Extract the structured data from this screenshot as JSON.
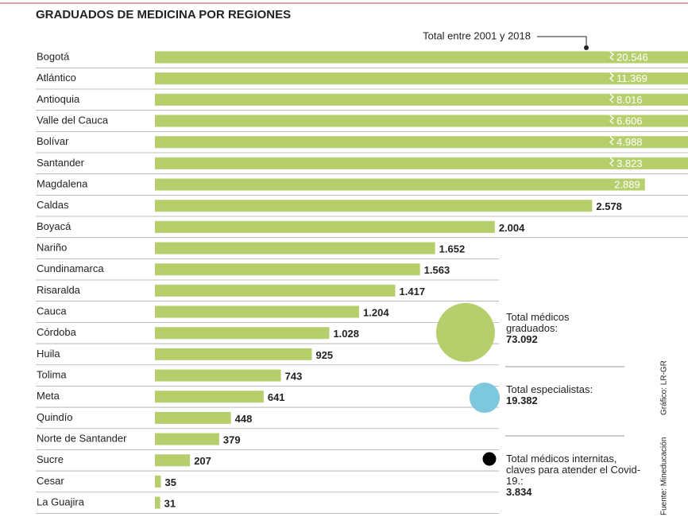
{
  "chart_data": {
    "type": "bar",
    "title": "GRADUADOS DE MEDICINA POR REGIONES",
    "annotation": "Total entre 2001 y 2018",
    "categories": [
      "Bogotá",
      "Atlántico",
      "Antioquia",
      "Valle del Cauca",
      "Bolívar",
      "Santander",
      "Magdalena",
      "Caldas",
      "Boyacá",
      "Nariño",
      "Cundinamarca",
      "Risaralda",
      "Cauca",
      "Córdoba",
      "Huila",
      "Tolima",
      "Meta",
      "Quindío",
      "Norte de Santander",
      "Sucre",
      "Cesar",
      "La Guajira"
    ],
    "values": [
      20546,
      11369,
      8016,
      6606,
      4988,
      3823,
      2889,
      2578,
      2004,
      1652,
      1563,
      1417,
      1204,
      1028,
      925,
      743,
      641,
      448,
      379,
      207,
      35,
      31
    ],
    "value_labels": [
      "20.546",
      "11.369",
      "8.016",
      "6.606",
      "4.988",
      "3.823",
      "2.889",
      "2.578",
      "2.004",
      "1.652",
      "1.563",
      "1.417",
      "1.204",
      "1.028",
      "925",
      "743",
      "641",
      "448",
      "379",
      "207",
      "35",
      "31"
    ],
    "color": "#b6cf6c",
    "xlim": [
      0,
      3143
    ],
    "totals": [
      {
        "label": "Total médicos graduados:",
        "value": 73092,
        "value_label": "73.092",
        "color": "#b6cf6c"
      },
      {
        "label": "Total especialistas:",
        "value": 19382,
        "value_label": "19.382",
        "color": "#7ec8dd"
      },
      {
        "label": "Total médicos internitas, claves para atender el Covid-19.:",
        "value": 3834,
        "value_label": "3.834",
        "color": "#000000"
      }
    ],
    "source": "Fuente: Mineducación",
    "credit": "Gráfico: LR-GR"
  }
}
